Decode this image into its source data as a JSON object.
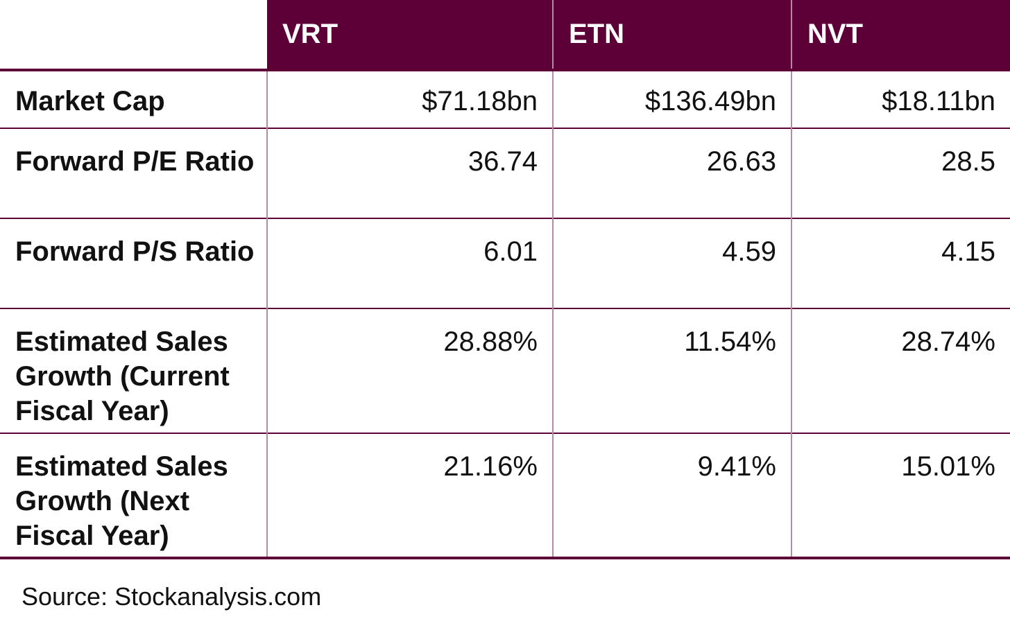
{
  "table": {
    "columns": [
      "",
      "VRT",
      "ETN",
      "NVT"
    ],
    "rows": [
      {
        "label": "Market Cap",
        "values": [
          "$71.18bn",
          "$136.49bn",
          "$18.11bn"
        ]
      },
      {
        "label": "Forward P/E Ratio",
        "values": [
          "36.74",
          "26.63",
          "28.5"
        ]
      },
      {
        "label": "Forward P/S Ratio",
        "values": [
          "6.01",
          "4.59",
          "4.15"
        ]
      },
      {
        "label": "Estimated Sales Growth (Current Fiscal Year)",
        "values": [
          "28.88%",
          "11.54%",
          "28.74%"
        ]
      },
      {
        "label": "Estimated Sales Growth (Next Fiscal Year)",
        "values": [
          "21.16%",
          "9.41%",
          "15.01%"
        ]
      }
    ]
  },
  "source": "Source: Stockanalysis.com",
  "colors": {
    "header_background": "#5c0037",
    "header_text": "#ffffff",
    "grid_line": "#b58aa3"
  }
}
